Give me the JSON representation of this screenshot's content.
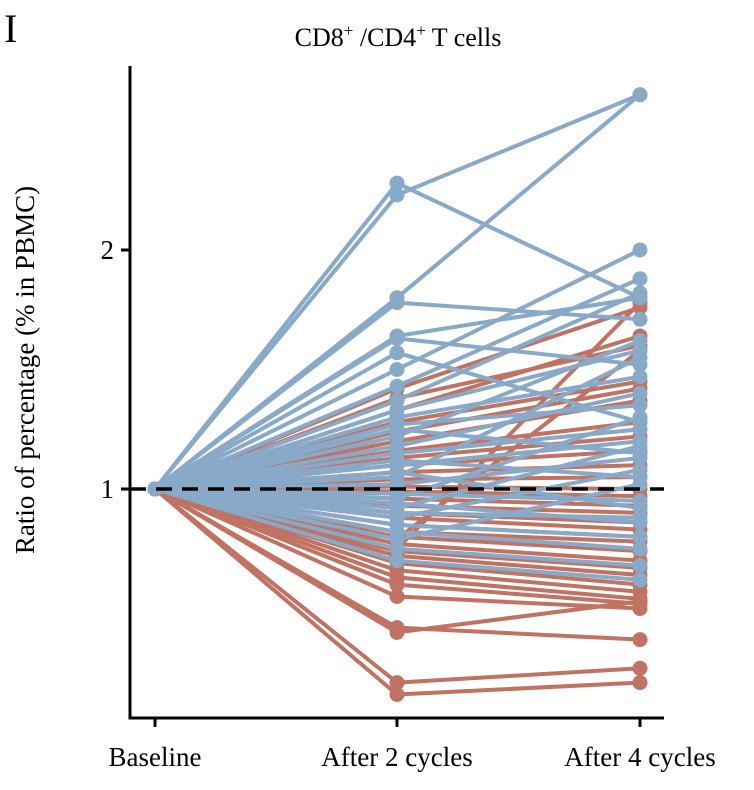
{
  "panel_label": "I",
  "chart_data": {
    "type": "line",
    "title_main": "CD8",
    "title_sup1": "+",
    "title_mid": " /CD4",
    "title_sup2": "+",
    "title_end": " T cells",
    "ylabel": "Ratio of percentage (% in PBMC)",
    "xlabel": "",
    "categories": [
      "Baseline",
      "After 2 cycles",
      "After 4 cycles"
    ],
    "yticks": [
      1,
      2
    ],
    "ylim": [
      0.1,
      2.8
    ],
    "reference_line": 1,
    "colors": {
      "increase": "#88a9c8",
      "decrease": "#c07362"
    },
    "series_increase": [
      [
        1,
        2.28,
        1.8
      ],
      [
        1,
        2.23,
        2.65
      ],
      [
        1,
        1.8,
        2.65
      ],
      [
        1,
        1.78,
        1.71
      ],
      [
        1,
        1.64,
        1.8
      ],
      [
        1,
        1.63,
        1.52
      ],
      [
        1,
        1.57,
        1.28
      ],
      [
        1,
        1.5,
        2.0
      ],
      [
        1,
        1.43,
        1.88
      ],
      [
        1,
        1.37,
        1.82
      ],
      [
        1,
        1.33,
        1.58
      ],
      [
        1,
        1.3,
        1.47
      ],
      [
        1,
        1.27,
        1.35
      ],
      [
        1,
        1.25,
        1.15
      ],
      [
        1,
        1.22,
        1.62
      ],
      [
        1,
        1.18,
        1.4
      ],
      [
        1,
        1.15,
        1.25
      ],
      [
        1,
        1.12,
        1.05
      ],
      [
        1,
        1.1,
        1.2
      ],
      [
        1,
        1.07,
        0.92
      ],
      [
        1,
        1.05,
        1.55
      ],
      [
        1,
        1.02,
        1.13
      ],
      [
        1,
        0.98,
        0.95
      ],
      [
        1,
        0.96,
        1.3
      ],
      [
        1,
        0.94,
        0.86
      ],
      [
        1,
        0.92,
        1.18
      ],
      [
        1,
        0.9,
        0.88
      ],
      [
        1,
        0.88,
        1.08
      ],
      [
        1,
        0.85,
        0.8
      ],
      [
        1,
        0.82,
        0.75
      ],
      [
        1,
        0.79,
        1.02
      ],
      [
        1,
        0.75,
        0.68
      ],
      [
        1,
        0.7,
        0.62
      ]
    ],
    "series_decrease": [
      [
        1,
        1.42,
        1.76
      ],
      [
        1,
        1.38,
        1.6
      ],
      [
        1,
        1.33,
        1.64
      ],
      [
        1,
        1.28,
        1.45
      ],
      [
        1,
        1.24,
        1.42
      ],
      [
        1,
        1.2,
        1.37
      ],
      [
        1,
        1.16,
        1.28
      ],
      [
        1,
        1.13,
        1.22
      ],
      [
        1,
        1.1,
        1.16
      ],
      [
        1,
        1.07,
        1.1
      ],
      [
        1,
        1.04,
        1.05
      ],
      [
        1,
        1.01,
        1.0
      ],
      [
        1,
        0.99,
        0.97
      ],
      [
        1,
        0.96,
        0.93
      ],
      [
        1,
        0.93,
        0.9
      ],
      [
        1,
        0.9,
        0.86
      ],
      [
        1,
        0.88,
        0.83
      ],
      [
        1,
        0.85,
        0.8
      ],
      [
        1,
        0.82,
        0.78
      ],
      [
        1,
        0.8,
        0.74
      ],
      [
        1,
        0.77,
        0.7
      ],
      [
        1,
        0.74,
        0.67
      ],
      [
        1,
        0.72,
        0.64
      ],
      [
        1,
        0.69,
        0.6
      ],
      [
        1,
        0.66,
        0.57
      ],
      [
        1,
        0.63,
        0.54
      ],
      [
        1,
        0.6,
        0.52
      ],
      [
        1,
        0.55,
        0.5
      ],
      [
        1,
        0.42,
        0.37
      ],
      [
        1,
        0.4,
        0.53
      ],
      [
        1,
        0.19,
        0.25
      ],
      [
        1,
        0.14,
        0.19
      ],
      [
        1,
        0.75,
        1.78
      ],
      [
        1,
        0.79,
        1.58
      ]
    ]
  }
}
